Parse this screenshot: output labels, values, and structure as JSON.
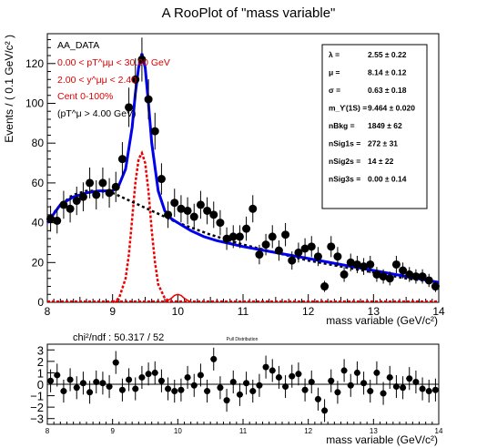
{
  "chart_data": [
    {
      "type": "scatter",
      "title": "A RooPlot of \"mass variable\"",
      "xlabel": "mass variable (GeV/c²)",
      "ylabel": "Events / ( 0.1 GeV/c² )",
      "xlim": [
        8,
        14
      ],
      "ylim": [
        0,
        135
      ],
      "x_ticks": [
        "8",
        "9",
        "10",
        "11",
        "12",
        "13",
        "14"
      ],
      "y_ticks": [
        "0",
        "20",
        "40",
        "60",
        "80",
        "100",
        "120"
      ],
      "legend_text": [
        "AA_DATA",
        "0.00 < pT^μμ < 30.00 GeV",
        "2.00 < y^μμ < 2.40",
        "Cent 0-100%",
        "(pT^μ > 4.00 GeV)"
      ],
      "params": [
        {
          "name": "λ",
          "value": "2.55 ± 0.22"
        },
        {
          "name": "μ",
          "value": "8.14 ± 0.12"
        },
        {
          "name": "σ",
          "value": "0.63 ± 0.18"
        },
        {
          "name": "m_ϒ(1S)",
          "value": "9.464 ± 0.020"
        },
        {
          "name": "nBkg",
          "value": "1849 ± 62"
        },
        {
          "name": "nSig1s",
          "value": "272 ± 31"
        },
        {
          "name": "nSig2s",
          "value": "14 ± 22"
        },
        {
          "name": "nSig3s",
          "value": "0.00 ± 0.14"
        }
      ],
      "series": [
        {
          "name": "data",
          "x": [
            8.05,
            8.15,
            8.25,
            8.35,
            8.45,
            8.55,
            8.65,
            8.75,
            8.85,
            8.95,
            9.05,
            9.15,
            9.25,
            9.35,
            9.45,
            9.55,
            9.65,
            9.75,
            9.85,
            9.95,
            10.05,
            10.15,
            10.25,
            10.35,
            10.45,
            10.55,
            10.65,
            10.75,
            10.85,
            10.95,
            11.05,
            11.15,
            11.25,
            11.35,
            11.45,
            11.55,
            11.65,
            11.75,
            11.85,
            11.95,
            12.05,
            12.15,
            12.25,
            12.35,
            12.45,
            12.55,
            12.65,
            12.75,
            12.85,
            12.95,
            13.05,
            13.15,
            13.25,
            13.35,
            13.45,
            13.55,
            13.65,
            13.75,
            13.85,
            13.95
          ],
          "y": [
            42,
            41,
            49,
            47,
            51,
            53,
            60,
            54,
            60,
            55,
            58,
            72,
            98,
            112,
            122,
            102,
            86,
            62,
            44,
            50,
            47,
            46,
            43,
            49,
            46,
            44,
            40,
            32,
            33,
            33,
            37,
            47,
            24,
            29,
            33,
            26,
            34,
            21,
            25,
            27,
            28,
            23,
            8,
            28,
            23,
            14,
            20,
            19,
            18,
            19,
            14,
            13,
            12,
            19,
            16,
            14,
            13,
            13,
            11,
            8
          ]
        },
        {
          "name": "total fit",
          "x": [
            8.0,
            8.2,
            8.4,
            8.6,
            8.8,
            9.0,
            9.1,
            9.2,
            9.3,
            9.35,
            9.4,
            9.45,
            9.5,
            9.55,
            9.6,
            9.7,
            9.8,
            9.9,
            10.0,
            10.2,
            10.4,
            10.6,
            10.8,
            11.0,
            11.5,
            12.0,
            12.5,
            13.0,
            13.5,
            14.0
          ],
          "y": [
            40,
            49,
            53,
            55,
            56,
            56,
            59,
            67,
            88,
            105,
            118,
            125,
            118,
            100,
            80,
            56,
            46,
            42,
            40,
            36,
            33,
            31,
            29.5,
            28,
            25,
            22,
            19,
            16,
            13,
            10
          ]
        },
        {
          "name": "background",
          "x": [
            8.0,
            8.2,
            8.4,
            8.6,
            8.8,
            9.0,
            9.2,
            9.4,
            9.6,
            9.8,
            10.0,
            10.5,
            11.0,
            11.5,
            12.0,
            12.5,
            13.0,
            13.5,
            14.0
          ],
          "y": [
            41,
            49,
            54,
            56,
            56,
            55,
            52,
            49,
            46,
            43,
            40,
            34,
            29,
            25,
            21,
            18,
            15,
            12,
            10
          ]
        },
        {
          "name": "Upsilon(1S)",
          "x": [
            9.0,
            9.1,
            9.2,
            9.25,
            9.3,
            9.35,
            9.4,
            9.45,
            9.5,
            9.55,
            9.6,
            9.65,
            9.7,
            9.8,
            9.9
          ],
          "y": [
            0,
            2,
            12,
            24,
            42,
            60,
            72,
            75,
            70,
            56,
            36,
            20,
            9,
            2,
            0
          ]
        },
        {
          "name": "Upsilon(2S)",
          "x": [
            9.8,
            9.9,
            9.95,
            10.0,
            10.05,
            10.1,
            10.2
          ],
          "y": [
            0,
            2,
            3.5,
            4,
            3.5,
            2,
            0
          ]
        },
        {
          "name": "Upsilon(3S)",
          "x": [
            8.0,
            14.0
          ],
          "y": [
            0.5,
            0.5
          ]
        }
      ]
    },
    {
      "type": "scatter",
      "title": "Pull Distribution",
      "xlabel": "mass variable (GeV/c²)",
      "chi2_label": "chi²/ndf : 50.317 / 52",
      "xlim": [
        8,
        14
      ],
      "ylim": [
        -3.5,
        3.5
      ],
      "x_ticks": [
        "8",
        "9",
        "10",
        "11",
        "12",
        "13",
        "14"
      ],
      "y_ticks": [
        "−3",
        "−2",
        "−1",
        "0",
        "1",
        "2",
        "3"
      ],
      "x": [
        8.05,
        8.15,
        8.25,
        8.35,
        8.45,
        8.55,
        8.65,
        8.75,
        8.85,
        8.95,
        9.05,
        9.15,
        9.25,
        9.35,
        9.45,
        9.55,
        9.65,
        9.75,
        9.85,
        9.95,
        10.05,
        10.15,
        10.25,
        10.35,
        10.45,
        10.55,
        10.65,
        10.75,
        10.85,
        10.95,
        11.05,
        11.15,
        11.25,
        11.35,
        11.45,
        11.55,
        11.65,
        11.75,
        11.85,
        11.95,
        12.05,
        12.15,
        12.25,
        12.35,
        12.45,
        12.55,
        12.65,
        12.75,
        12.85,
        12.95,
        13.05,
        13.15,
        13.25,
        13.35,
        13.45,
        13.55,
        13.65,
        13.75,
        13.85,
        13.95
      ],
      "y": [
        0.3,
        0.8,
        -0.6,
        0.4,
        -0.3,
        0.1,
        -0.7,
        0.2,
        0.1,
        -0.2,
        1.9,
        -0.5,
        0.4,
        -0.4,
        0.6,
        0.9,
        1.0,
        0.3,
        -0.4,
        -0.6,
        -0.5,
        0.6,
        -0.1,
        0.8,
        -0.6,
        2.2,
        -0.3,
        -1.4,
        0.2,
        -0.9,
        0.1,
        -0.6,
        -0.1,
        1.5,
        1.2,
        0.6,
        -0.2,
        0.7,
        0.9,
        -0.5,
        0.2,
        -1.3,
        -2.3,
        0.3,
        -0.7,
        1.2,
        -0.1,
        1.0,
        0.1,
        -0.6,
        1.0,
        -0.8,
        0.6,
        -0.2,
        -0.3,
        0.5,
        0.2,
        -0.4,
        -0.6,
        -0.5
      ]
    }
  ],
  "colors": {
    "data": "#000000",
    "fit": "#0000ee",
    "bkg": "#000000",
    "sig": "#ee0000",
    "axis": "#000000"
  }
}
